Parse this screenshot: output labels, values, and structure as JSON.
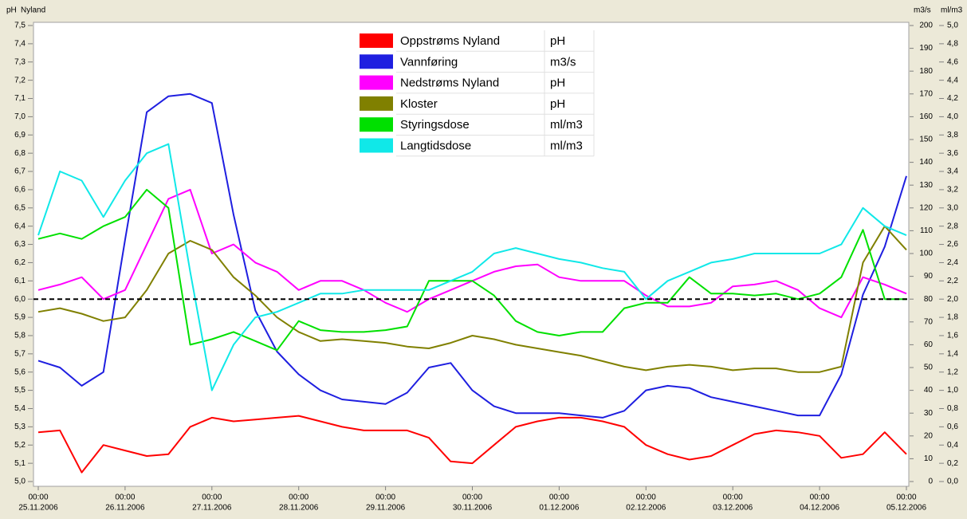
{
  "chart_data": {
    "type": "line",
    "y_title": "pH",
    "subtitle": "Nyland",
    "y2_title": "m3/s",
    "y3_title": "ml/m3",
    "x": [
      "25.11.2006 00:00",
      "25.11.2006 06:00",
      "25.11.2006 12:00",
      "25.11.2006 18:00",
      "26.11.2006 00:00",
      "26.11.2006 06:00",
      "26.11.2006 12:00",
      "26.11.2006 18:00",
      "27.11.2006 00:00",
      "27.11.2006 06:00",
      "27.11.2006 12:00",
      "27.11.2006 18:00",
      "28.11.2006 00:00",
      "28.11.2006 06:00",
      "28.11.2006 12:00",
      "28.11.2006 18:00",
      "29.11.2006 00:00",
      "29.11.2006 06:00",
      "29.11.2006 12:00",
      "29.11.2006 18:00",
      "30.11.2006 00:00",
      "30.11.2006 06:00",
      "30.11.2006 12:00",
      "30.11.2006 18:00",
      "01.12.2006 00:00",
      "01.12.2006 06:00",
      "01.12.2006 12:00",
      "01.12.2006 18:00",
      "02.12.2006 00:00",
      "02.12.2006 06:00",
      "02.12.2006 12:00",
      "02.12.2006 18:00",
      "03.12.2006 00:00",
      "03.12.2006 06:00",
      "03.12.2006 12:00",
      "03.12.2006 18:00",
      "04.12.2006 00:00",
      "04.12.2006 06:00",
      "04.12.2006 12:00",
      "04.12.2006 18:00",
      "05.12.2006 00:00"
    ],
    "xlim": [
      "25.11.2006 00:00",
      "05.12.2006 00:00"
    ],
    "xticks": [
      {
        "value": "25.11.2006 00:00",
        "label": [
          "00:00",
          "25.11.2006"
        ]
      },
      {
        "value": "26.11.2006 00:00",
        "label": [
          "00:00",
          "26.11.2006"
        ]
      },
      {
        "value": "27.11.2006 00:00",
        "label": [
          "00:00",
          "27.11.2006"
        ]
      },
      {
        "value": "28.11.2006 00:00",
        "label": [
          "00:00",
          "28.11.2006"
        ]
      },
      {
        "value": "29.11.2006 00:00",
        "label": [
          "00:00",
          "29.11.2006"
        ]
      },
      {
        "value": "30.11.2006 00:00",
        "label": [
          "00:00",
          "30.11.2006"
        ]
      },
      {
        "value": "01.12.2006 00:00",
        "label": [
          "00:00",
          "01.12.2006"
        ]
      },
      {
        "value": "02.12.2006 00:00",
        "label": [
          "00:00",
          "02.12.2006"
        ]
      },
      {
        "value": "03.12.2006 00:00",
        "label": [
          "00:00",
          "03.12.2006"
        ]
      },
      {
        "value": "04.12.2006 00:00",
        "label": [
          "00:00",
          "04.12.2006"
        ]
      },
      {
        "value": "05.12.2006 00:00",
        "label": [
          "00:00",
          "05.12.2006"
        ]
      }
    ],
    "ylim": [
      5.0,
      7.5
    ],
    "yticks": [
      {
        "value": 5.0,
        "label": "5,0"
      },
      {
        "value": 5.1,
        "label": "5,1"
      },
      {
        "value": 5.2,
        "label": "5,2"
      },
      {
        "value": 5.3,
        "label": "5,3"
      },
      {
        "value": 5.4,
        "label": "5,4"
      },
      {
        "value": 5.5,
        "label": "5,5"
      },
      {
        "value": 5.6,
        "label": "5,6"
      },
      {
        "value": 5.7,
        "label": "5,7"
      },
      {
        "value": 5.8,
        "label": "5,8"
      },
      {
        "value": 5.9,
        "label": "5,9"
      },
      {
        "value": 6.0,
        "label": "6,0"
      },
      {
        "value": 6.1,
        "label": "6,1"
      },
      {
        "value": 6.2,
        "label": "6,2"
      },
      {
        "value": 6.3,
        "label": "6,3"
      },
      {
        "value": 6.4,
        "label": "6,4"
      },
      {
        "value": 6.5,
        "label": "6,5"
      },
      {
        "value": 6.6,
        "label": "6,6"
      },
      {
        "value": 6.7,
        "label": "6,7"
      },
      {
        "value": 6.8,
        "label": "6,8"
      },
      {
        "value": 6.9,
        "label": "6,9"
      },
      {
        "value": 7.0,
        "label": "7,0"
      },
      {
        "value": 7.1,
        "label": "7,1"
      },
      {
        "value": 7.2,
        "label": "7,2"
      },
      {
        "value": 7.3,
        "label": "7,3"
      },
      {
        "value": 7.4,
        "label": "7,4"
      },
      {
        "value": 7.5,
        "label": "7,5"
      }
    ],
    "y2lim": [
      0,
      200
    ],
    "y2ticks": [
      0,
      10,
      20,
      30,
      40,
      50,
      60,
      70,
      80,
      90,
      100,
      110,
      120,
      130,
      140,
      150,
      160,
      170,
      180,
      190,
      200
    ],
    "y3lim": [
      0,
      5.0
    ],
    "y3ticks": [
      {
        "value": 0,
        "label": "0,0"
      },
      {
        "value": 0.2,
        "label": "0,2"
      },
      {
        "value": 0.4,
        "label": "0,4"
      },
      {
        "value": 0.6,
        "label": "0,6"
      },
      {
        "value": 0.8,
        "label": "0,8"
      },
      {
        "value": 1.0,
        "label": "1,0"
      },
      {
        "value": 1.2,
        "label": "1,2"
      },
      {
        "value": 1.4,
        "label": "1,4"
      },
      {
        "value": 1.6,
        "label": "1,6"
      },
      {
        "value": 1.8,
        "label": "1,8"
      },
      {
        "value": 2.0,
        "label": "2,0"
      },
      {
        "value": 2.2,
        "label": "2,2"
      },
      {
        "value": 2.4,
        "label": "2,4"
      },
      {
        "value": 2.6,
        "label": "2,6"
      },
      {
        "value": 2.8,
        "label": "2,8"
      },
      {
        "value": 3.0,
        "label": "3,0"
      },
      {
        "value": 3.2,
        "label": "3,2"
      },
      {
        "value": 3.4,
        "label": "3,4"
      },
      {
        "value": 3.6,
        "label": "3,6"
      },
      {
        "value": 3.8,
        "label": "3,8"
      },
      {
        "value": 4.0,
        "label": "4,0"
      },
      {
        "value": 4.2,
        "label": "4,2"
      },
      {
        "value": 4.4,
        "label": "4,4"
      },
      {
        "value": 4.6,
        "label": "4,6"
      },
      {
        "value": 4.8,
        "label": "4,8"
      },
      {
        "value": 5.0,
        "label": "5,0"
      }
    ],
    "hline": 6.0,
    "series": [
      {
        "name": "Oppstrøms Nyland",
        "unit": "pH",
        "axis": "y",
        "color": "#ff0000",
        "values": [
          5.27,
          5.28,
          5.05,
          5.2,
          5.17,
          5.14,
          5.15,
          5.3,
          5.35,
          5.33,
          5.34,
          5.35,
          5.36,
          5.33,
          5.3,
          5.28,
          5.28,
          5.28,
          5.24,
          5.11,
          5.1,
          5.2,
          5.3,
          5.33,
          5.35,
          5.35,
          5.33,
          5.3,
          5.2,
          5.15,
          5.12,
          5.14,
          5.2,
          5.26,
          5.28,
          5.27,
          5.25,
          5.13,
          5.15,
          5.27,
          5.15
        ]
      },
      {
        "name": "Vannføring",
        "unit": "m3/s",
        "axis": "y2",
        "color": "#1f1fe0",
        "values": [
          53,
          50,
          42,
          48,
          106,
          162,
          169,
          170,
          166,
          117,
          75,
          57,
          47,
          40,
          36,
          35,
          34,
          39,
          50,
          52,
          40,
          33,
          30,
          30,
          30,
          29,
          28,
          31,
          40,
          42,
          41,
          37,
          35,
          33,
          31,
          29,
          29,
          47,
          82,
          103,
          134
        ]
      },
      {
        "name": "Nedstrøms Nyland",
        "unit": "pH",
        "axis": "y",
        "color": "#ff00ff",
        "values": [
          6.05,
          6.08,
          6.12,
          6.0,
          6.05,
          6.3,
          6.55,
          6.6,
          6.25,
          6.3,
          6.2,
          6.15,
          6.05,
          6.1,
          6.1,
          6.05,
          5.98,
          5.93,
          6.0,
          6.05,
          6.1,
          6.15,
          6.18,
          6.19,
          6.12,
          6.1,
          6.1,
          6.1,
          6.02,
          5.96,
          5.96,
          5.98,
          6.07,
          6.08,
          6.1,
          6.05,
          5.95,
          5.9,
          6.12,
          6.08,
          6.03
        ]
      },
      {
        "name": "Kloster",
        "unit": "pH",
        "axis": "y",
        "color": "#808000",
        "values": [
          5.93,
          5.95,
          5.92,
          5.88,
          5.9,
          6.05,
          6.25,
          6.32,
          6.27,
          6.12,
          6.02,
          5.9,
          5.82,
          5.77,
          5.78,
          5.77,
          5.76,
          5.74,
          5.73,
          5.76,
          5.8,
          5.78,
          5.75,
          5.73,
          5.71,
          5.69,
          5.66,
          5.63,
          5.61,
          5.63,
          5.64,
          5.63,
          5.61,
          5.62,
          5.62,
          5.6,
          5.6,
          5.63,
          6.2,
          6.4,
          6.27
        ]
      },
      {
        "name": "Styringsdose",
        "unit": "ml/m3",
        "axis": "y3",
        "color": "#00e000",
        "values": [
          2.66,
          2.72,
          2.66,
          2.8,
          2.9,
          3.2,
          3.0,
          1.5,
          1.56,
          1.64,
          1.54,
          1.44,
          1.76,
          1.66,
          1.64,
          1.64,
          1.66,
          1.7,
          2.2,
          2.2,
          2.2,
          2.04,
          1.76,
          1.64,
          1.6,
          1.64,
          1.64,
          1.9,
          1.96,
          1.96,
          2.24,
          2.06,
          2.06,
          2.04,
          2.06,
          2.0,
          2.06,
          2.24,
          2.76,
          2.0,
          2.0
        ]
      },
      {
        "name": "Langtidsdose",
        "unit": "ml/m3",
        "axis": "y3",
        "color": "#10e8e8",
        "values": [
          2.7,
          3.4,
          3.3,
          2.9,
          3.3,
          3.6,
          3.7,
          2.3,
          1.0,
          1.5,
          1.8,
          1.86,
          1.96,
          2.06,
          2.06,
          2.1,
          2.1,
          2.1,
          2.1,
          2.2,
          2.3,
          2.5,
          2.56,
          2.5,
          2.44,
          2.4,
          2.34,
          2.3,
          2.0,
          2.2,
          2.3,
          2.4,
          2.44,
          2.5,
          2.5,
          2.5,
          2.5,
          2.6,
          3.0,
          2.8,
          2.7
        ]
      }
    ]
  }
}
